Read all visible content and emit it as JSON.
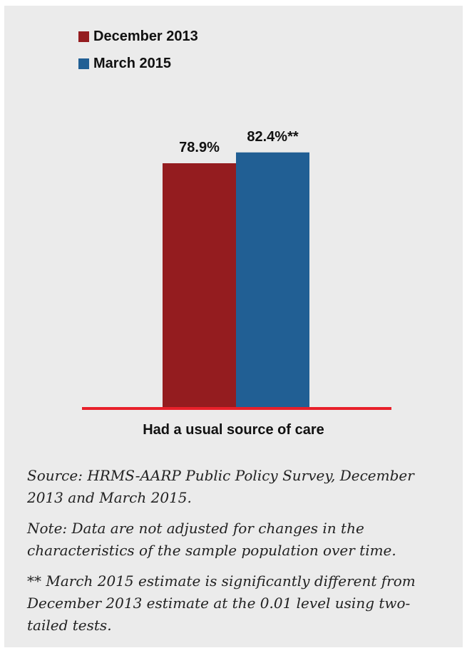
{
  "colors": {
    "december_2013": "#941c1f",
    "march_2015": "#215f94",
    "baseline": "#e8202a",
    "background": "#ebebeb"
  },
  "legend": {
    "items": [
      {
        "label": "December 2013",
        "color": "#941c1f"
      },
      {
        "label": "March 2015",
        "color": "#215f94"
      }
    ]
  },
  "chart_data": {
    "type": "bar",
    "categories": [
      "Had a usual source of care"
    ],
    "series": [
      {
        "name": "December 2013",
        "values": [
          78.9
        ],
        "labels": [
          "78.9%"
        ]
      },
      {
        "name": "March 2015",
        "values": [
          82.4
        ],
        "labels": [
          "82.4%**"
        ]
      }
    ],
    "xlabel": "Had a usual source of care",
    "ylabel": "",
    "title": "",
    "legend_position": "top-left",
    "grid": false
  },
  "notes": {
    "source": "Source: HRMS-AARP Public Policy Survey, December 2013 and March 2015.",
    "note": "Note: Data are not adjusted for changes in the characteristics of the sample population over time.",
    "significance": "** March 2015 estimate is significantly different from December 2013 estimate at the 0.01 level using two-tailed tests."
  }
}
